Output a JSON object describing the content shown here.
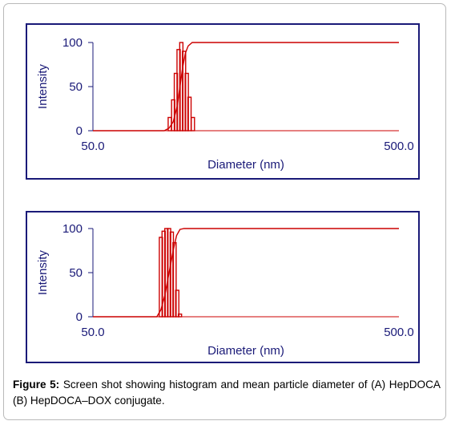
{
  "colors": {
    "frame": "#1a1a78",
    "series": "#cc0000",
    "text": "#1a1a78"
  },
  "caption": {
    "label": "Figure 5:",
    "text": "Screen shot showing histogram and mean particle diameter of (A) HepDOCA (B) HepDOCA–DOX conjugate."
  },
  "chart_data": [
    {
      "type": "bar",
      "panel": "A",
      "xlabel": "Diameter (nm)",
      "ylabel": "Intensity",
      "x_tick_labels": [
        "50.0",
        "500.0"
      ],
      "y_tick_labels": [
        "0",
        "50",
        "100"
      ],
      "xlim": [
        50,
        500
      ],
      "ylim": [
        0,
        100
      ],
      "bins": [
        {
          "x": 163,
          "y": 15
        },
        {
          "x": 168,
          "y": 35
        },
        {
          "x": 172,
          "y": 65
        },
        {
          "x": 176,
          "y": 92
        },
        {
          "x": 180,
          "y": 100
        },
        {
          "x": 184,
          "y": 90
        },
        {
          "x": 188,
          "y": 65
        },
        {
          "x": 192,
          "y": 38
        },
        {
          "x": 197,
          "y": 15
        }
      ],
      "cumulative": [
        [
          50,
          0
        ],
        [
          155,
          0
        ],
        [
          162,
          3
        ],
        [
          168,
          10
        ],
        [
          174,
          28
        ],
        [
          178,
          50
        ],
        [
          182,
          72
        ],
        [
          186,
          88
        ],
        [
          190,
          96
        ],
        [
          196,
          100
        ],
        [
          500,
          100
        ]
      ]
    },
    {
      "type": "bar",
      "panel": "B",
      "xlabel": "Diameter (nm)",
      "ylabel": "Intensity",
      "x_tick_labels": [
        "50.0",
        "500.0"
      ],
      "y_tick_labels": [
        "0",
        "50",
        "100"
      ],
      "xlim": [
        50,
        500
      ],
      "ylim": [
        0,
        100
      ],
      "bins": [
        {
          "x": 150,
          "y": 90
        },
        {
          "x": 154,
          "y": 97
        },
        {
          "x": 158,
          "y": 100
        },
        {
          "x": 162,
          "y": 100
        },
        {
          "x": 166,
          "y": 96
        },
        {
          "x": 170,
          "y": 84
        },
        {
          "x": 174,
          "y": 30
        },
        {
          "x": 178,
          "y": 3
        }
      ],
      "cumulative": [
        [
          50,
          0
        ],
        [
          144,
          0
        ],
        [
          150,
          8
        ],
        [
          156,
          25
        ],
        [
          162,
          50
        ],
        [
          168,
          75
        ],
        [
          173,
          92
        ],
        [
          178,
          99
        ],
        [
          184,
          100
        ],
        [
          500,
          100
        ]
      ]
    }
  ]
}
